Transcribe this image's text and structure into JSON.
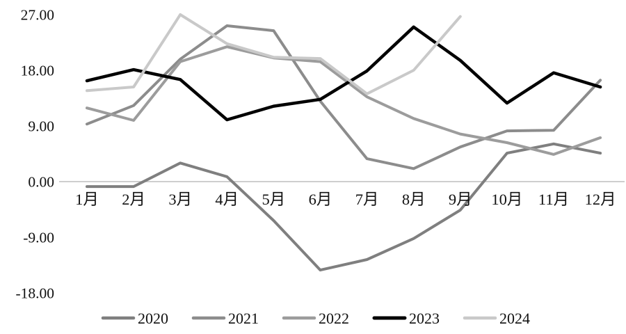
{
  "chart_data": {
    "type": "line",
    "title": "",
    "xlabel": "",
    "ylabel": "",
    "categories": [
      "1月",
      "2月",
      "3月",
      "4月",
      "5月",
      "6月",
      "7月",
      "8月",
      "9月",
      "10月",
      "11月",
      "12月"
    ],
    "y_ticks": [
      "27.00",
      "18.00",
      "9.00",
      "0.00",
      "-9.00",
      "-18.00"
    ],
    "ylim": [
      -18,
      27
    ],
    "grid": "zero-baseline-only",
    "zero_line_color": "#bdbdbd",
    "legend_position": "bottom",
    "series": [
      {
        "name": "2020",
        "color": "#7f7f7f",
        "width": 4,
        "values": [
          -0.8,
          -0.8,
          3.0,
          0.8,
          -6.3,
          -14.3,
          -12.6,
          -9.2,
          -4.6,
          4.6,
          6.1,
          4.6
        ]
      },
      {
        "name": "2021",
        "color": "#8c8c8c",
        "width": 4,
        "values": [
          9.3,
          12.3,
          19.8,
          25.2,
          24.4,
          13.0,
          3.7,
          2.1,
          5.6,
          8.2,
          8.3,
          16.4
        ]
      },
      {
        "name": "2022",
        "color": "#9c9c9c",
        "width": 4,
        "values": [
          11.9,
          9.9,
          19.4,
          21.8,
          20.0,
          19.4,
          13.7,
          10.2,
          7.7,
          6.3,
          4.4,
          7.1
        ]
      },
      {
        "name": "2023",
        "color": "#000000",
        "width": 4.5,
        "values": [
          16.3,
          18.1,
          16.5,
          10.0,
          12.2,
          13.3,
          17.9,
          25.0,
          19.6,
          12.7,
          17.6,
          15.3
        ]
      },
      {
        "name": "2024",
        "color": "#c9c9c9",
        "width": 4,
        "values": [
          14.7,
          15.3,
          27.0,
          22.3,
          20.1,
          19.9,
          14.2,
          18.0,
          26.7,
          null,
          null,
          null
        ]
      }
    ]
  }
}
